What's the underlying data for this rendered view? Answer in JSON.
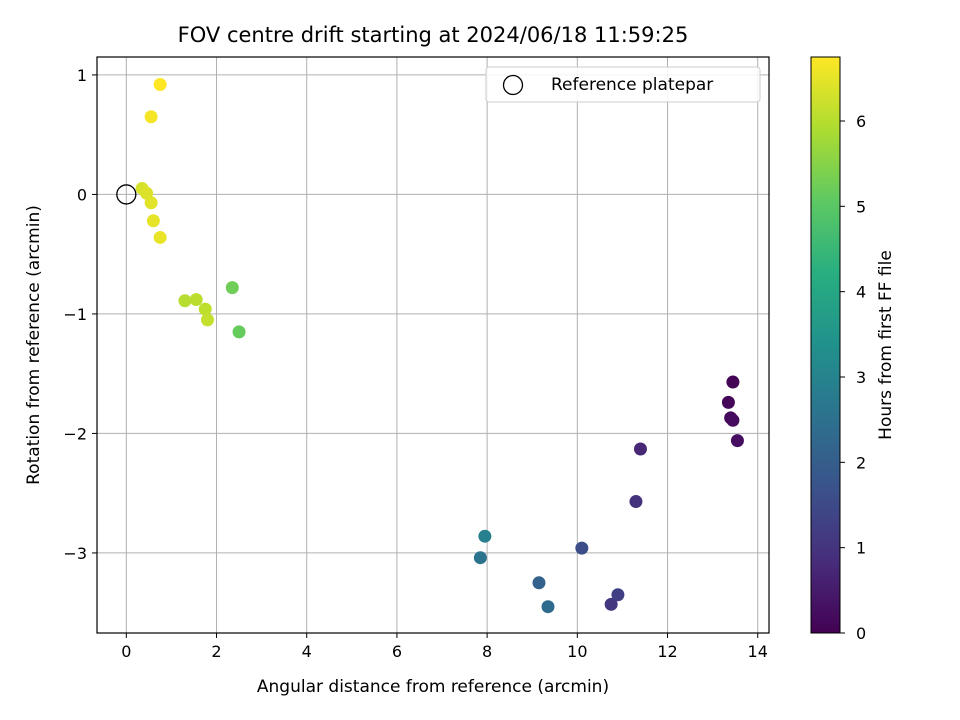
{
  "chart_data": {
    "type": "scatter",
    "title": "FOV centre drift starting at 2024/06/18 11:59:25",
    "xlabel": "Angular distance from reference (arcmin)",
    "ylabel": "Rotation from reference (arcmin)",
    "xlim": [
      -0.65,
      14.25
    ],
    "ylim": [
      -3.67,
      1.15
    ],
    "xticks": [
      0,
      2,
      4,
      6,
      8,
      10,
      12,
      14
    ],
    "yticks": [
      -3,
      -2,
      -1,
      0,
      1
    ],
    "grid": true,
    "legend": {
      "placement": "top-right",
      "entries": [
        "Reference platepar"
      ]
    },
    "reference_point": {
      "x": 0,
      "y": 0,
      "label": "Reference platepar"
    },
    "colorbar": {
      "label": "Hours from first FF file",
      "range": [
        0,
        6.75
      ],
      "ticks": [
        0,
        1,
        2,
        3,
        4,
        5,
        6
      ],
      "colormap": "viridis"
    },
    "points": [
      {
        "x": 13.45,
        "y": -1.57,
        "hours": 0.05
      },
      {
        "x": 13.35,
        "y": -1.74,
        "hours": 0.1
      },
      {
        "x": 13.4,
        "y": -1.87,
        "hours": 0.15
      },
      {
        "x": 13.45,
        "y": -1.89,
        "hours": 0.2
      },
      {
        "x": 13.55,
        "y": -2.06,
        "hours": 0.25
      },
      {
        "x": 11.4,
        "y": -2.13,
        "hours": 0.75
      },
      {
        "x": 11.3,
        "y": -2.57,
        "hours": 0.95
      },
      {
        "x": 10.75,
        "y": -3.43,
        "hours": 1.1
      },
      {
        "x": 10.9,
        "y": -3.35,
        "hours": 1.25
      },
      {
        "x": 10.1,
        "y": -2.96,
        "hours": 1.6
      },
      {
        "x": 9.15,
        "y": -3.25,
        "hours": 2.1
      },
      {
        "x": 9.35,
        "y": -3.45,
        "hours": 2.35
      },
      {
        "x": 7.85,
        "y": -3.04,
        "hours": 2.55
      },
      {
        "x": 7.95,
        "y": -2.86,
        "hours": 2.9
      },
      {
        "x": 2.35,
        "y": -0.78,
        "hours": 5.25
      },
      {
        "x": 2.5,
        "y": -1.15,
        "hours": 5.15
      },
      {
        "x": 1.3,
        "y": -0.89,
        "hours": 6.0
      },
      {
        "x": 1.55,
        "y": -0.88,
        "hours": 6.05
      },
      {
        "x": 1.75,
        "y": -0.96,
        "hours": 6.1
      },
      {
        "x": 1.8,
        "y": -1.05,
        "hours": 6.15
      },
      {
        "x": 0.35,
        "y": 0.05,
        "hours": 6.35
      },
      {
        "x": 0.45,
        "y": 0.01,
        "hours": 6.4
      },
      {
        "x": 0.55,
        "y": -0.07,
        "hours": 6.45
      },
      {
        "x": 0.6,
        "y": -0.22,
        "hours": 6.5
      },
      {
        "x": 0.75,
        "y": -0.36,
        "hours": 6.55
      },
      {
        "x": 0.55,
        "y": 0.65,
        "hours": 6.65
      },
      {
        "x": 0.75,
        "y": 0.92,
        "hours": 6.75
      }
    ]
  }
}
